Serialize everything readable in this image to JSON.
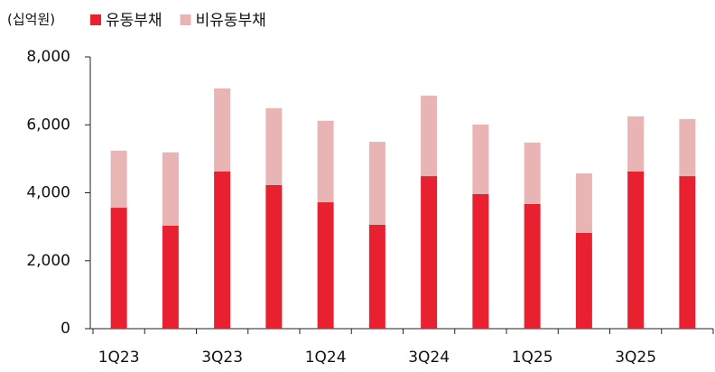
{
  "chart_data": {
    "type": "stacked_bar",
    "unit_label": "(십억원)",
    "categories": [
      "1Q23",
      null,
      "3Q23",
      null,
      "1Q24",
      null,
      "3Q24",
      null,
      "1Q25",
      null,
      "3Q25",
      null
    ],
    "series": [
      {
        "name": "유동부채",
        "color": "#e8202f",
        "values": [
          3560,
          3030,
          4630,
          4230,
          3720,
          3060,
          4490,
          3960,
          3670,
          2820,
          4630,
          4490
        ]
      },
      {
        "name": "비유동부채",
        "color": "#e8b4b4",
        "values": [
          1680,
          2160,
          2440,
          2260,
          2400,
          2440,
          2370,
          2050,
          1810,
          1750,
          1620,
          1680
        ]
      }
    ],
    "ylim": [
      0,
      8000
    ],
    "yticks": [
      0,
      {
        "value": 2000,
        "label": "2,000"
      },
      {
        "value": 4000,
        "label": "4,000"
      },
      {
        "value": 6000,
        "label": "6,000"
      },
      {
        "value": 8000,
        "label": "8,000"
      }
    ],
    "legend": "top-left"
  }
}
